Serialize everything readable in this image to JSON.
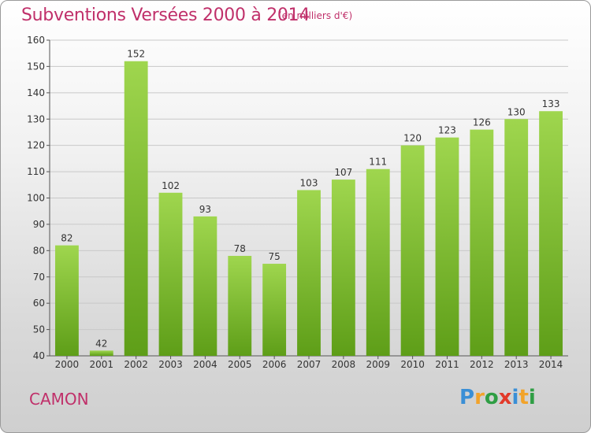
{
  "header": {
    "title": "Subventions Versées 2000 à 2014",
    "subtitle": "(en milliers d'€)"
  },
  "footer": {
    "commune": "CAMON",
    "logo_text": "Proxiti",
    "logo_letters": [
      {
        "ch": "P",
        "color": "#3a8fd6"
      },
      {
        "ch": "r",
        "color": "#f2a32a"
      },
      {
        "ch": "o",
        "color": "#2f9e44"
      },
      {
        "ch": "x",
        "color": "#e23a2a"
      },
      {
        "ch": "i",
        "color": "#3a8fd6"
      },
      {
        "ch": "t",
        "color": "#f2a32a"
      },
      {
        "ch": "i",
        "color": "#2f9e44"
      }
    ]
  },
  "colors": {
    "accent": "#c0306a",
    "bar_top": "#9fd64e",
    "bar_bottom": "#5e9e18",
    "grid": "#c8c8c8",
    "axis_text": "#333333"
  },
  "chart_data": {
    "type": "bar",
    "title": "Subventions Versées 2000 à 2014",
    "subtitle": "(en milliers d'€)",
    "categories": [
      "2000",
      "2001",
      "2002",
      "2003",
      "2004",
      "2005",
      "2006",
      "2007",
      "2008",
      "2009",
      "2010",
      "2011",
      "2012",
      "2013",
      "2014"
    ],
    "values": [
      82,
      42,
      152,
      102,
      93,
      78,
      75,
      103,
      107,
      111,
      120,
      123,
      126,
      130,
      133
    ],
    "ylim": [
      40,
      160
    ],
    "yticks": [
      40,
      50,
      60,
      70,
      80,
      90,
      100,
      110,
      120,
      130,
      140,
      150,
      160
    ],
    "grid": true,
    "xlabel": "",
    "ylabel": ""
  }
}
